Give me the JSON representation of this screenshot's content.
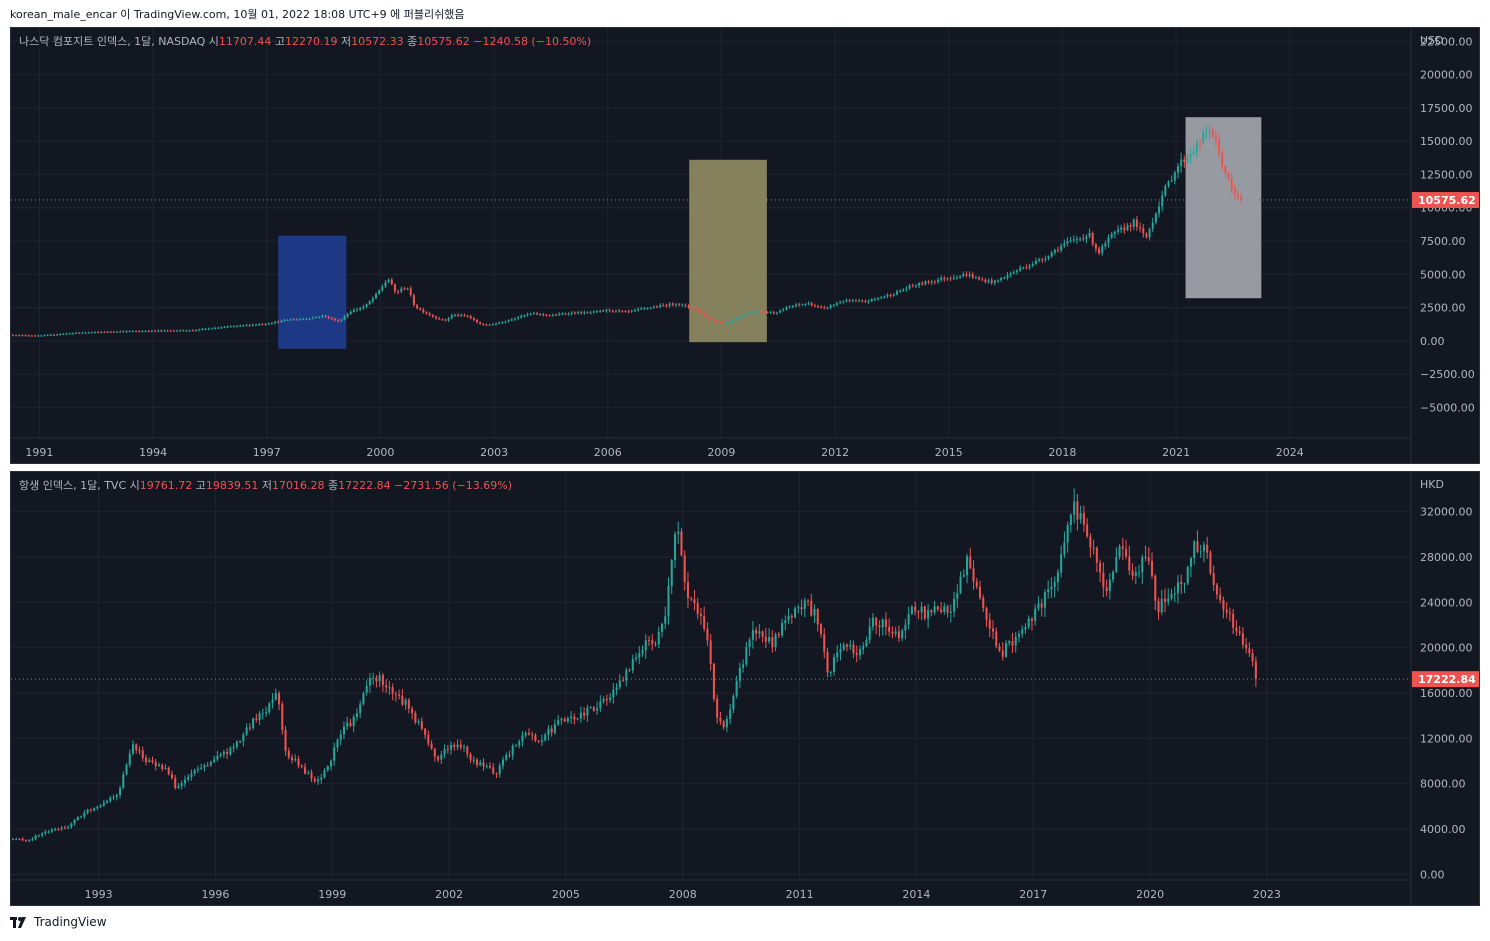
{
  "header": {
    "text": "korean_male_encar 이 TradingView.com, 10월 01, 2022 18:08 UTC+9 에 퍼블리쉬했음"
  },
  "footer": {
    "logo_icon": "tradingview-logo-icon",
    "brand": "TradingView"
  },
  "colors": {
    "background": "#131722",
    "grid": "#1f2330",
    "axis_text": "#b2b5be",
    "up": "#26a69a",
    "down": "#ef5350",
    "price_line": "#ef5350"
  },
  "chart_data": [
    {
      "type": "candlestick",
      "legend": {
        "name": "나스닥 컴포지트 인덱스, 1달, NASDAQ",
        "o_label": "시",
        "o": "11707.44",
        "h_label": "고",
        "h": "12270.19",
        "l_label": "저",
        "l": "10572.33",
        "c_label": "종",
        "c": "10575.62",
        "change": "−1240.58 (−10.50%)"
      },
      "currency": "USD",
      "last_price": "10575.62",
      "ylim": [
        -7300,
        23500
      ],
      "y_ticks": [
        "22500.00",
        "20000.00",
        "17500.00",
        "15000.00",
        "12500.00",
        "10000.00",
        "7500.00",
        "5000.00",
        "2500.00",
        "0.00",
        "−2500.00",
        "−5000.00"
      ],
      "y_tick_values": [
        22500,
        20000,
        17500,
        15000,
        12500,
        10000,
        7500,
        5000,
        2500,
        0,
        -2500,
        -5000
      ],
      "xlim": [
        1990.25,
        2027.2
      ],
      "x_ticks": [
        "1991",
        "1994",
        "1997",
        "2000",
        "2003",
        "2006",
        "2009",
        "2012",
        "2015",
        "2018",
        "2021",
        "2024"
      ],
      "x_tick_values": [
        1991,
        1994,
        1997,
        2000,
        2003,
        2006,
        2009,
        2012,
        2015,
        2018,
        2021,
        2024
      ],
      "series_points": [
        [
          1990.3,
          430
        ],
        [
          1991,
          380
        ],
        [
          1992,
          600
        ],
        [
          1993,
          690
        ],
        [
          1994,
          750
        ],
        [
          1995,
          780
        ],
        [
          1996,
          1060
        ],
        [
          1997,
          1290
        ],
        [
          1997.6,
          1600
        ],
        [
          1998,
          1650
        ],
        [
          1998.5,
          1870
        ],
        [
          1998.9,
          1450
        ],
        [
          1999.2,
          2200
        ],
        [
          1999.6,
          2600
        ],
        [
          1999.9,
          3500
        ],
        [
          2000.2,
          4700
        ],
        [
          2000.4,
          3600
        ],
        [
          2000.7,
          4100
        ],
        [
          2000.9,
          2600
        ],
        [
          2001.2,
          2100
        ],
        [
          2001.4,
          1800
        ],
        [
          2001.7,
          1500
        ],
        [
          2001.9,
          1950
        ],
        [
          2002.3,
          1850
        ],
        [
          2002.6,
          1300
        ],
        [
          2002.8,
          1170
        ],
        [
          2003.2,
          1400
        ],
        [
          2003.6,
          1750
        ],
        [
          2004,
          2050
        ],
        [
          2004.5,
          1900
        ],
        [
          2005,
          2100
        ],
        [
          2005.5,
          2100
        ],
        [
          2006,
          2300
        ],
        [
          2006.5,
          2150
        ],
        [
          2007,
          2450
        ],
        [
          2007.8,
          2800
        ],
        [
          2008.3,
          2400
        ],
        [
          2008.7,
          1600
        ],
        [
          2009.1,
          1300
        ],
        [
          2009.5,
          1850
        ],
        [
          2009.9,
          2250
        ],
        [
          2010.4,
          2100
        ],
        [
          2010.9,
          2650
        ],
        [
          2011.3,
          2800
        ],
        [
          2011.7,
          2400
        ],
        [
          2012.2,
          3000
        ],
        [
          2012.8,
          2950
        ],
        [
          2013.5,
          3500
        ],
        [
          2014,
          4100
        ],
        [
          2014.8,
          4650
        ],
        [
          2015.5,
          5000
        ],
        [
          2015.8,
          4600
        ],
        [
          2016.2,
          4400
        ],
        [
          2016.8,
          5300
        ],
        [
          2017.5,
          6200
        ],
        [
          2018,
          7200
        ],
        [
          2018.7,
          8000
        ],
        [
          2018.95,
          6600
        ],
        [
          2019.3,
          7900
        ],
        [
          2019.9,
          8950
        ],
        [
          2020.2,
          7650
        ],
        [
          2020.6,
          10700
        ],
        [
          2021,
          13000
        ],
        [
          2021.5,
          14500
        ],
        [
          2021.9,
          16000
        ],
        [
          2022.2,
          13500
        ],
        [
          2022.5,
          11000
        ],
        [
          2022.75,
          10575
        ]
      ],
      "annotations": [
        {
          "type": "rectangle",
          "color": "#1e3a8a",
          "x0": 1997.3,
          "x1": 1999.1,
          "y0": -600,
          "y1": 7900
        },
        {
          "type": "rectangle",
          "color": "#8a8760",
          "x0": 2008.15,
          "x1": 2010.2,
          "y0": -100,
          "y1": 13600
        },
        {
          "type": "rectangle",
          "color": "#9ea1a8",
          "x0": 2021.25,
          "x1": 2023.25,
          "y0": 3200,
          "y1": 16800
        }
      ]
    },
    {
      "type": "candlestick",
      "legend": {
        "name": "항생 인덱스, 1달, TVC",
        "o_label": "시",
        "o": "19761.72",
        "h_label": "고",
        "h": "19839.51",
        "l_label": "저",
        "l": "17016.28",
        "c_label": "종",
        "c": "17222.84",
        "change": "−2731.56 (−13.69%)"
      },
      "currency": "HKD",
      "last_price": "17222.84",
      "ylim": [
        -500,
        35500
      ],
      "y_ticks": [
        "32000.00",
        "28000.00",
        "24000.00",
        "20000.00",
        "16000.00",
        "12000.00",
        "8000.00",
        "4000.00",
        "0.00"
      ],
      "y_tick_values": [
        32000,
        28000,
        24000,
        20000,
        16000,
        12000,
        8000,
        4000,
        0
      ],
      "xlim": [
        1990.75,
        2026.7
      ],
      "x_ticks": [
        "1993",
        "1996",
        "1999",
        "2002",
        "2005",
        "2008",
        "2011",
        "2014",
        "2017",
        "2020",
        "2023"
      ],
      "x_tick_values": [
        1993,
        1996,
        1999,
        2002,
        2005,
        2008,
        2011,
        2014,
        2017,
        2020,
        2023
      ],
      "series_points": [
        [
          1990.8,
          3100
        ],
        [
          1991.2,
          3000
        ],
        [
          1991.6,
          3700
        ],
        [
          1992.2,
          4200
        ],
        [
          1992.7,
          5600
        ],
        [
          1993,
          6100
        ],
        [
          1993.5,
          7200
        ],
        [
          1993.9,
          11600
        ],
        [
          1994.2,
          10000
        ],
        [
          1994.7,
          9400
        ],
        [
          1995,
          7600
        ],
        [
          1995.4,
          8900
        ],
        [
          1995.9,
          10000
        ],
        [
          1996.5,
          11200
        ],
        [
          1996.9,
          13200
        ],
        [
          1997.3,
          14600
        ],
        [
          1997.6,
          16300
        ],
        [
          1997.8,
          10700
        ],
        [
          1998.1,
          9800
        ],
        [
          1998.6,
          8000
        ],
        [
          1998.9,
          9700
        ],
        [
          1999.3,
          13000
        ],
        [
          1999.6,
          13700
        ],
        [
          1999.9,
          16900
        ],
        [
          2000.2,
          17400
        ],
        [
          2000.6,
          15800
        ],
        [
          2000.9,
          15100
        ],
        [
          2001.3,
          12800
        ],
        [
          2001.7,
          10000
        ],
        [
          2001.9,
          11200
        ],
        [
          2002.3,
          11300
        ],
        [
          2002.7,
          9800
        ],
        [
          2003.2,
          9000
        ],
        [
          2003.6,
          10900
        ],
        [
          2003.9,
          12600
        ],
        [
          2004.3,
          11800
        ],
        [
          2004.8,
          13300
        ],
        [
          2005.3,
          13900
        ],
        [
          2005.8,
          14900
        ],
        [
          2006.3,
          16200
        ],
        [
          2006.9,
          19900
        ],
        [
          2007.3,
          20800
        ],
        [
          2007.6,
          23800
        ],
        [
          2007.85,
          31600
        ],
        [
          2008.1,
          24000
        ],
        [
          2008.4,
          23400
        ],
        [
          2008.6,
          21500
        ],
        [
          2008.85,
          14300
        ],
        [
          2009.1,
          13000
        ],
        [
          2009.4,
          17000
        ],
        [
          2009.8,
          21800
        ],
        [
          2010.3,
          20500
        ],
        [
          2010.8,
          23000
        ],
        [
          2011.2,
          23700
        ],
        [
          2011.5,
          22400
        ],
        [
          2011.7,
          17600
        ],
        [
          2012.1,
          20400
        ],
        [
          2012.6,
          19600
        ],
        [
          2012.9,
          22600
        ],
        [
          2013.5,
          21000
        ],
        [
          2013.9,
          23300
        ],
        [
          2014.4,
          23000
        ],
        [
          2014.9,
          23600
        ],
        [
          2015.3,
          27500
        ],
        [
          2015.6,
          24500
        ],
        [
          2015.9,
          22000
        ],
        [
          2016.1,
          19200
        ],
        [
          2016.5,
          20800
        ],
        [
          2016.9,
          22400
        ],
        [
          2017.3,
          24500
        ],
        [
          2017.7,
          27600
        ],
        [
          2018.0,
          32900
        ],
        [
          2018.3,
          30500
        ],
        [
          2018.6,
          28000
        ],
        [
          2018.85,
          25000
        ],
        [
          2019.2,
          29000
        ],
        [
          2019.6,
          26000
        ],
        [
          2019.9,
          28000
        ],
        [
          2020.2,
          23500
        ],
        [
          2020.6,
          24800
        ],
        [
          2020.9,
          26300
        ],
        [
          2021.1,
          29000
        ],
        [
          2021.4,
          28800
        ],
        [
          2021.7,
          24500
        ],
        [
          2021.95,
          23400
        ],
        [
          2022.2,
          21500
        ],
        [
          2022.55,
          20000
        ],
        [
          2022.75,
          17222
        ]
      ]
    }
  ]
}
